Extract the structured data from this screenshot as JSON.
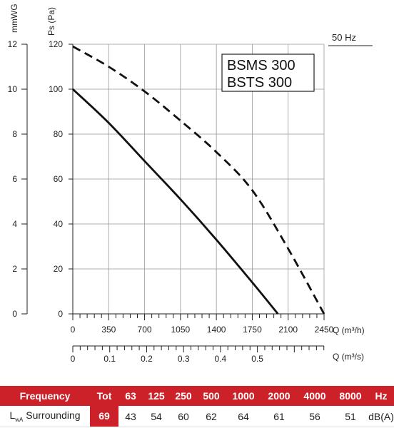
{
  "chart_data": {
    "type": "line",
    "frequency_label": "50 Hz",
    "legend": [
      "BSMS 300",
      "BSTS 300"
    ],
    "y_left_label": "mmWG",
    "y_left_ticks": [
      "0",
      "2",
      "4",
      "6",
      "8",
      "10",
      "12"
    ],
    "y_right_label": "Ps (Pa)",
    "y_right_ticks": [
      "0",
      "20",
      "40",
      "60",
      "80",
      "100",
      "120"
    ],
    "x_label": "Q (m³/h)",
    "x_ticks": [
      "0",
      "350",
      "700",
      "1050",
      "1400",
      "1750",
      "2100",
      "2450"
    ],
    "x2_label": "Q (m³/s)",
    "x2_ticks": [
      "0",
      "0.1",
      "0.2",
      "0.3",
      "0.4",
      "0.5"
    ],
    "xlim": [
      0,
      2450
    ],
    "ylim": [
      0,
      120
    ],
    "series": [
      {
        "style": "solid",
        "x": [
          0,
          350,
          700,
          1050,
          1400,
          1750,
          2000
        ],
        "y": [
          100,
          85,
          68,
          51,
          33,
          14,
          0
        ]
      },
      {
        "style": "dashed",
        "x": [
          0,
          350,
          700,
          1050,
          1400,
          1750,
          2100,
          2450
        ],
        "y": [
          119,
          110,
          99,
          86,
          72,
          55,
          29,
          0
        ]
      }
    ]
  },
  "table": {
    "header": [
      "Frequency",
      "Tot",
      "63",
      "125",
      "250",
      "500",
      "1000",
      "2000",
      "4000",
      "8000",
      "Hz"
    ],
    "row_label_l": "L",
    "row_label_sub": "wA",
    "row_label_rest": "Surrounding",
    "values": [
      "69",
      "43",
      "54",
      "60",
      "62",
      "64",
      "61",
      "56",
      "51"
    ],
    "unit": "dB(A)"
  },
  "colors": {
    "accent": "#cc2128",
    "text": "#222222",
    "grid": "#999999"
  }
}
